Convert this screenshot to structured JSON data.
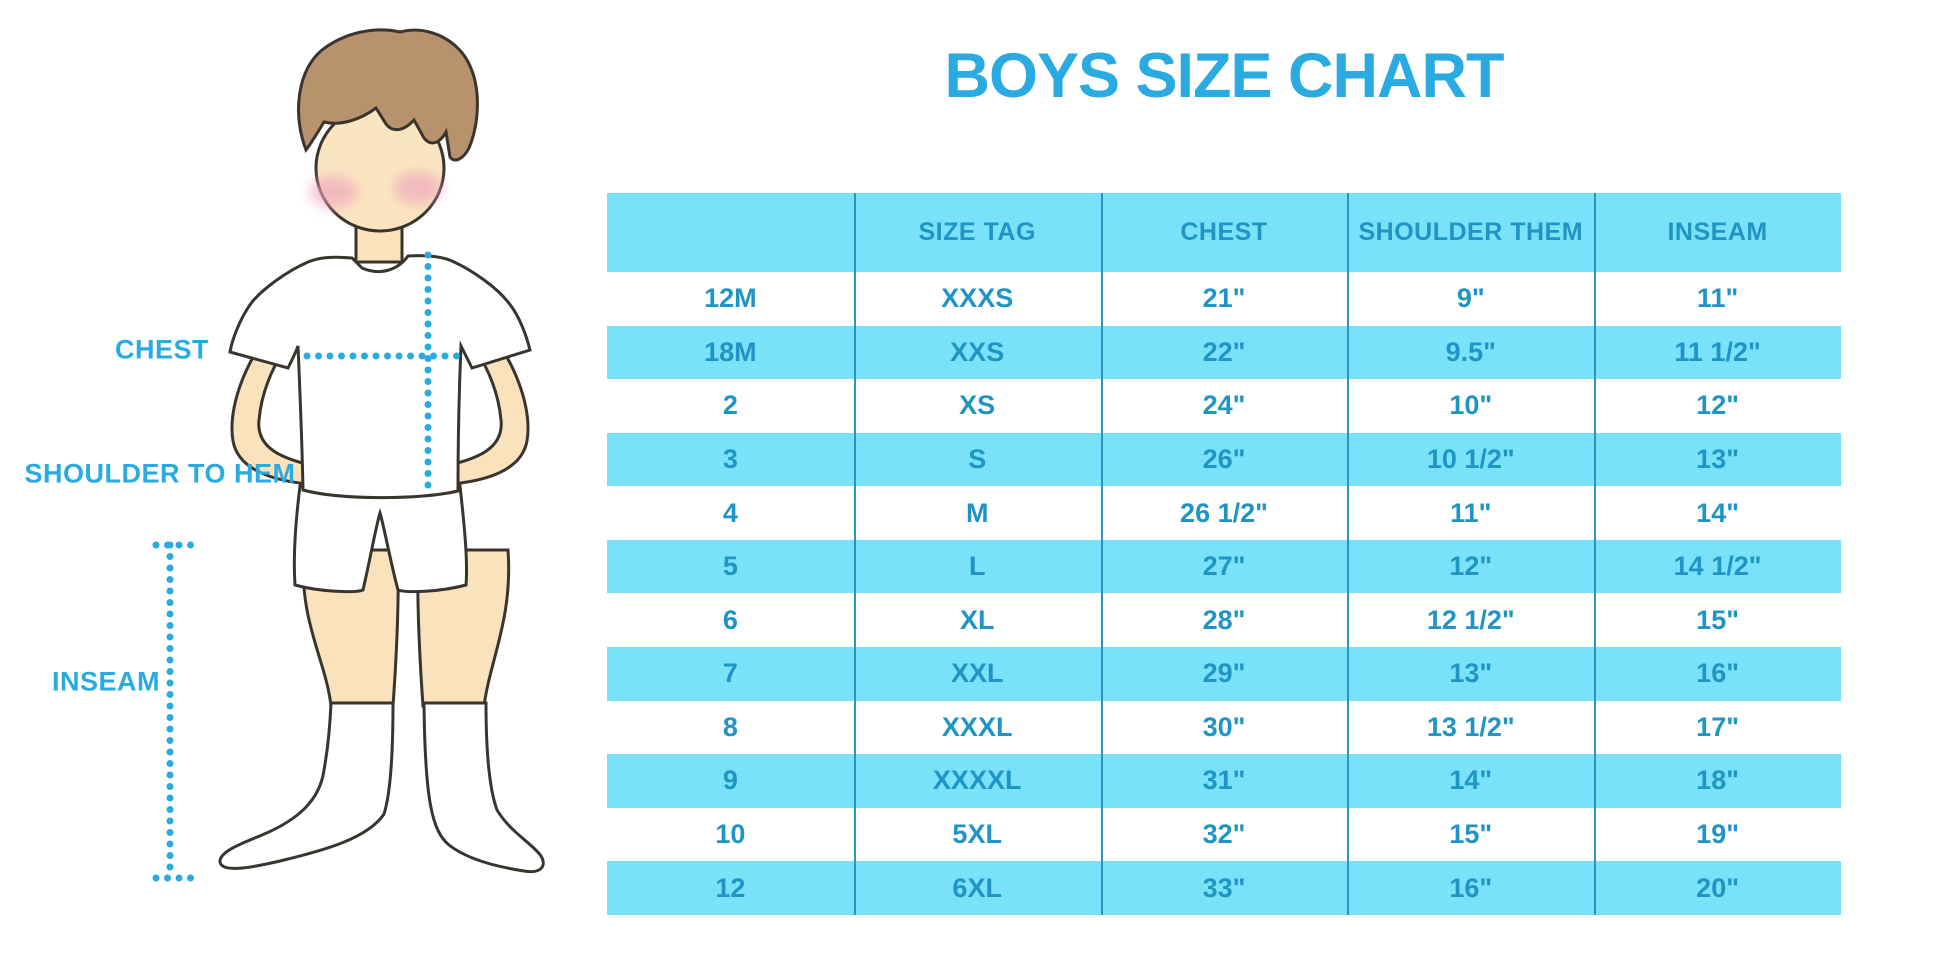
{
  "title": "BOYS SIZE CHART",
  "colors": {
    "title_accent": "#29ABE2",
    "row_band": "#79E2F9",
    "table_text": "#2095C5",
    "table_divider": "#2A96C0",
    "measure_dots": "#29ABE2",
    "skin": "#FAE3BC",
    "hair": "#B8926C",
    "cheek": "#EFA3BC",
    "garment": "#FFFFFF",
    "outline": "#3A342E"
  },
  "figure": {
    "labels": {
      "chest": "CHEST",
      "shoulder_to_hem": "SHOULDER TO HEM",
      "inseam": "INSEAM"
    }
  },
  "chart_data": {
    "type": "table",
    "title": "BOYS SIZE CHART",
    "columns": [
      "",
      "SIZE TAG",
      "CHEST",
      "SHOULDER THEM",
      "INSEAM"
    ],
    "rows": [
      [
        "12M",
        "XXXS",
        "21\"",
        "9\"",
        "11\""
      ],
      [
        "18M",
        "XXS",
        "22\"",
        "9.5\"",
        "11 1/2\""
      ],
      [
        "2",
        "XS",
        "24\"",
        "10\"",
        "12\""
      ],
      [
        "3",
        "S",
        "26\"",
        "10 1/2\"",
        "13\""
      ],
      [
        "4",
        "M",
        "26 1/2\"",
        "11\"",
        "14\""
      ],
      [
        "5",
        "L",
        "27\"",
        "12\"",
        "14 1/2\""
      ],
      [
        "6",
        "XL",
        "28\"",
        "12 1/2\"",
        "15\""
      ],
      [
        "7",
        "XXL",
        "29\"",
        "13\"",
        "16\""
      ],
      [
        "8",
        "XXXL",
        "30\"",
        "13 1/2\"",
        "17\""
      ],
      [
        "9",
        "XXXXL",
        "31\"",
        "14\"",
        "18\""
      ],
      [
        "10",
        "5XL",
        "32\"",
        "15\"",
        "19\""
      ],
      [
        "12",
        "6XL",
        "33\"",
        "16\"",
        "20\""
      ]
    ],
    "layout": {
      "banded_rows": true,
      "band_pattern": "header and every other row cyan",
      "grid": "vertical dividers only"
    }
  }
}
